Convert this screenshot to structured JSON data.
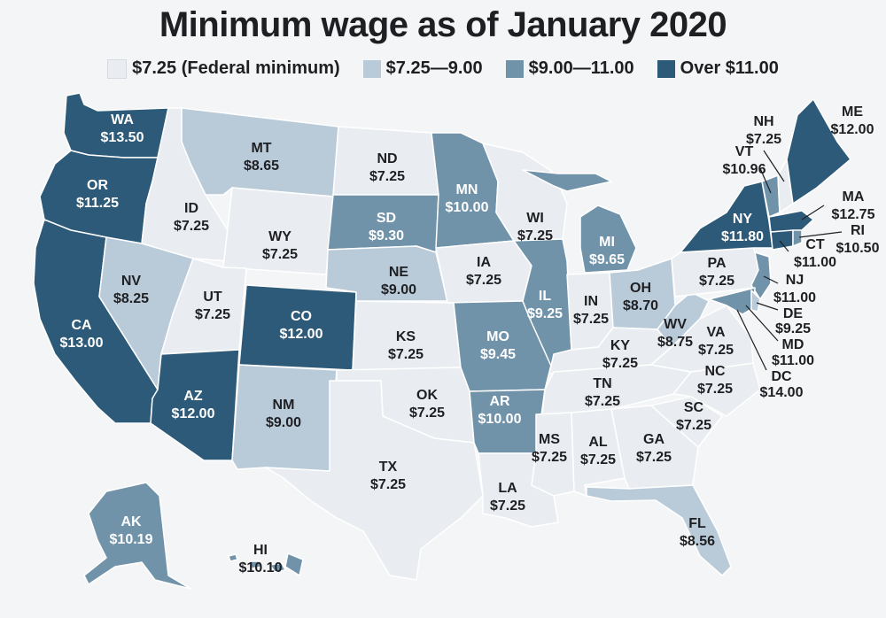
{
  "title": "Minimum wage as of January 2020",
  "legend": [
    {
      "label": "$7.25 (Federal minimum)",
      "color": "#e9edf1"
    },
    {
      "label": "$7.25—9.00",
      "color": "#b9cbd9"
    },
    {
      "label": "$9.00—11.00",
      "color": "#7193aa"
    },
    {
      "label": "Over $11.00",
      "color": "#2d5a78"
    }
  ],
  "states": {
    "WA": {
      "abbr": "WA",
      "wage": "$13.50"
    },
    "OR": {
      "abbr": "OR",
      "wage": "$11.25"
    },
    "CA": {
      "abbr": "CA",
      "wage": "$13.00"
    },
    "ID": {
      "abbr": "ID",
      "wage": "$7.25"
    },
    "NV": {
      "abbr": "NV",
      "wage": "$8.25"
    },
    "MT": {
      "abbr": "MT",
      "wage": "$8.65"
    },
    "WY": {
      "abbr": "WY",
      "wage": "$7.25"
    },
    "UT": {
      "abbr": "UT",
      "wage": "$7.25"
    },
    "AZ": {
      "abbr": "AZ",
      "wage": "$12.00"
    },
    "CO": {
      "abbr": "CO",
      "wage": "$12.00"
    },
    "NM": {
      "abbr": "NM",
      "wage": "$9.00"
    },
    "ND": {
      "abbr": "ND",
      "wage": "$7.25"
    },
    "SD": {
      "abbr": "SD",
      "wage": "$9.30"
    },
    "NE": {
      "abbr": "NE",
      "wage": "$9.00"
    },
    "KS": {
      "abbr": "KS",
      "wage": "$7.25"
    },
    "OK": {
      "abbr": "OK",
      "wage": "$7.25"
    },
    "TX": {
      "abbr": "TX",
      "wage": "$7.25"
    },
    "MN": {
      "abbr": "MN",
      "wage": "$10.00"
    },
    "IA": {
      "abbr": "IA",
      "wage": "$7.25"
    },
    "MO": {
      "abbr": "MO",
      "wage": "$9.45"
    },
    "AR": {
      "abbr": "AR",
      "wage": "$10.00"
    },
    "LA": {
      "abbr": "LA",
      "wage": "$7.25"
    },
    "WI": {
      "abbr": "WI",
      "wage": "$7.25"
    },
    "IL": {
      "abbr": "IL",
      "wage": "$9.25"
    },
    "MI": {
      "abbr": "MI",
      "wage": "$9.65"
    },
    "IN": {
      "abbr": "IN",
      "wage": "$7.25"
    },
    "OH": {
      "abbr": "OH",
      "wage": "$8.70"
    },
    "KY": {
      "abbr": "KY",
      "wage": "$7.25"
    },
    "TN": {
      "abbr": "TN",
      "wage": "$7.25"
    },
    "MS": {
      "abbr": "MS",
      "wage": "$7.25"
    },
    "AL": {
      "abbr": "AL",
      "wage": "$7.25"
    },
    "GA": {
      "abbr": "GA",
      "wage": "$7.25"
    },
    "FL": {
      "abbr": "FL",
      "wage": "$8.56"
    },
    "SC": {
      "abbr": "SC",
      "wage": "$7.25"
    },
    "NC": {
      "abbr": "NC",
      "wage": "$7.25"
    },
    "VA": {
      "abbr": "VA",
      "wage": "$7.25"
    },
    "WV": {
      "abbr": "WV",
      "wage": "$8.75"
    },
    "PA": {
      "abbr": "PA",
      "wage": "$7.25"
    },
    "NY": {
      "abbr": "NY",
      "wage": "$11.80"
    },
    "VT": {
      "abbr": "VT",
      "wage": "$10.96"
    },
    "NH": {
      "abbr": "NH",
      "wage": "$7.25"
    },
    "ME": {
      "abbr": "ME",
      "wage": "$12.00"
    },
    "MA": {
      "abbr": "MA",
      "wage": "$12.75"
    },
    "RI": {
      "abbr": "RI",
      "wage": "$10.50"
    },
    "CT": {
      "abbr": "CT",
      "wage": "$11.00"
    },
    "NJ": {
      "abbr": "NJ",
      "wage": "$11.00"
    },
    "DE": {
      "abbr": "DE",
      "wage": "$9.25"
    },
    "MD": {
      "abbr": "MD",
      "wage": "$11.00"
    },
    "DC": {
      "abbr": "DC",
      "wage": "$14.00"
    },
    "AK": {
      "abbr": "AK",
      "wage": "$10.19"
    },
    "HI": {
      "abbr": "HI",
      "wage": "$10.10"
    }
  }
}
